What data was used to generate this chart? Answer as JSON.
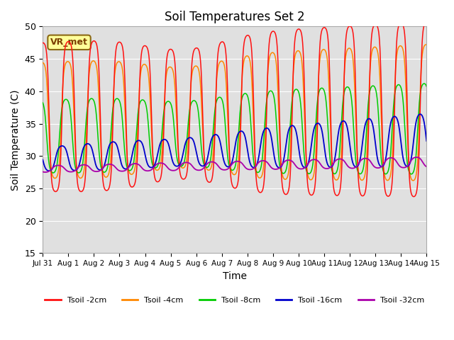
{
  "title": "Soil Temperatures Set 2",
  "xlabel": "Time",
  "ylabel": "Soil Temperature (C)",
  "ylim": [
    15,
    50
  ],
  "xlim_days": [
    0,
    15
  ],
  "tick_labels": [
    "Jul 31",
    "Aug 1",
    "Aug 2",
    "Aug 3",
    "Aug 4",
    "Aug 5",
    "Aug 6",
    "Aug 7",
    "Aug 8",
    "Aug 9",
    "Aug 10",
    "Aug 11",
    "Aug 12",
    "Aug 13",
    "Aug 14",
    "Aug 15"
  ],
  "annotation_text": "VR_met",
  "colors": {
    "2cm": "#ff1111",
    "4cm": "#ff8800",
    "8cm": "#00cc00",
    "16cm": "#0000cc",
    "32cm": "#aa00aa"
  },
  "legend_labels": [
    "Tsoil -2cm",
    "Tsoil -4cm",
    "Tsoil -8cm",
    "Tsoil -16cm",
    "Tsoil -32cm"
  ],
  "bg_color": "#e0e0e0",
  "fig_color": "#ffffff",
  "title_fontsize": 12,
  "grid_color": "#ffffff"
}
